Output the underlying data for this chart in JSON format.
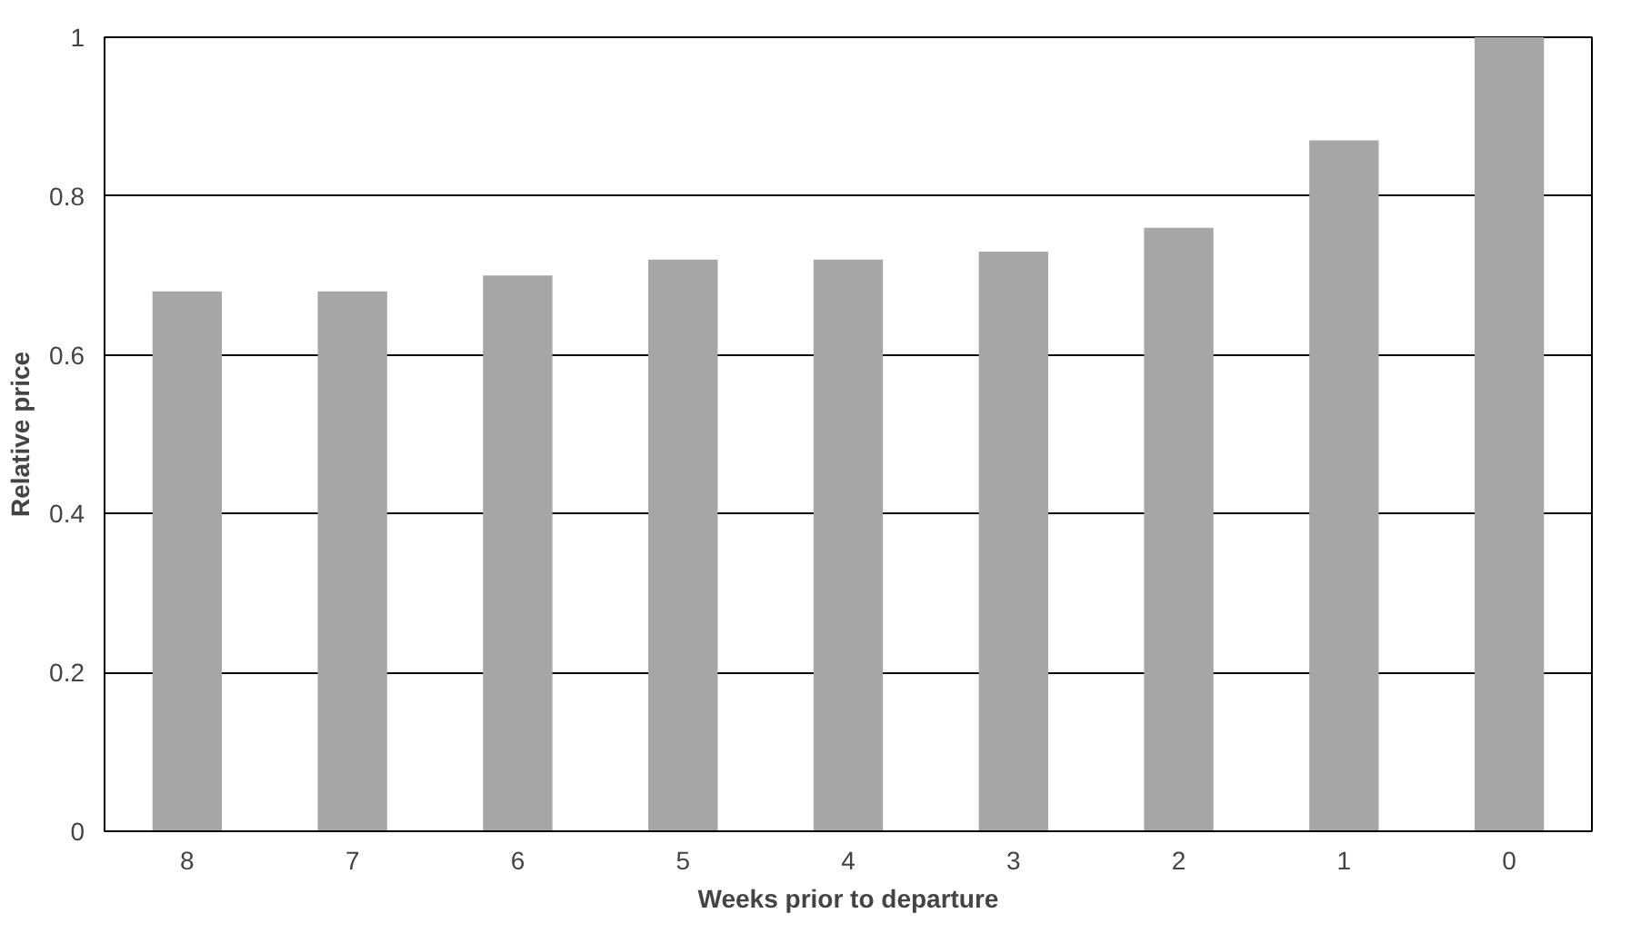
{
  "chart_data": {
    "type": "bar",
    "xlabel": "Weeks prior to departure",
    "ylabel": "Relative price",
    "categories": [
      "8",
      "7",
      "6",
      "5",
      "4",
      "3",
      "2",
      "1",
      "0"
    ],
    "values": [
      0.68,
      0.68,
      0.7,
      0.72,
      0.72,
      0.73,
      0.76,
      0.87,
      1.0
    ],
    "color": "#a6a6a6",
    "ylim": [
      0,
      1
    ],
    "yticks": [
      0,
      0.2,
      0.4,
      0.6,
      0.8,
      1
    ],
    "grid": "y"
  }
}
